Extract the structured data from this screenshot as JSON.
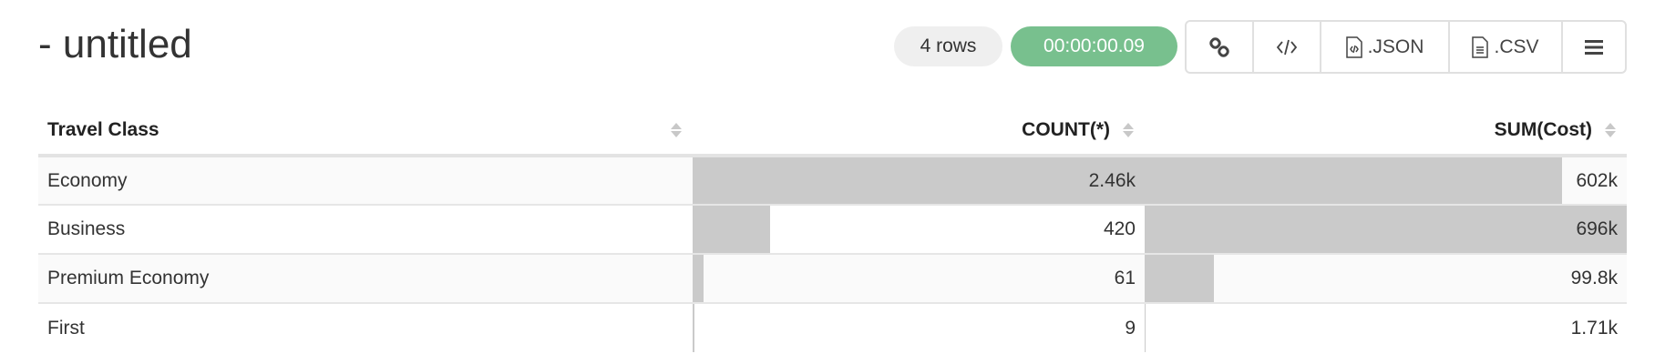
{
  "title": "- untitled",
  "status": {
    "rows": "4 rows",
    "timer": "00:00:00.09",
    "timer_color": "#78c08e"
  },
  "toolbar": [
    {
      "icon": "link-icon",
      "label": ""
    },
    {
      "icon": "code-icon",
      "label": ""
    },
    {
      "icon": "json-file-icon",
      "label": ".JSON"
    },
    {
      "icon": "csv-file-icon",
      "label": ".CSV"
    },
    {
      "icon": "menu-icon",
      "label": ""
    }
  ],
  "table": {
    "columns": [
      "Travel Class",
      "COUNT(*)",
      "SUM(Cost)"
    ],
    "rows": [
      {
        "cls": "Economy",
        "count": "2.46k",
        "count_val": 2460,
        "sum": "602k",
        "sum_val": 602000
      },
      {
        "cls": "Business",
        "count": "420",
        "count_val": 420,
        "sum": "696k",
        "sum_val": 696000
      },
      {
        "cls": "Premium Economy",
        "count": "61",
        "count_val": 61,
        "sum": "99.8k",
        "sum_val": 99800
      },
      {
        "cls": "First",
        "count": "9",
        "count_val": 9,
        "sum": "1.71k",
        "sum_val": 1710
      }
    ],
    "bar_color": "#cacaca"
  }
}
